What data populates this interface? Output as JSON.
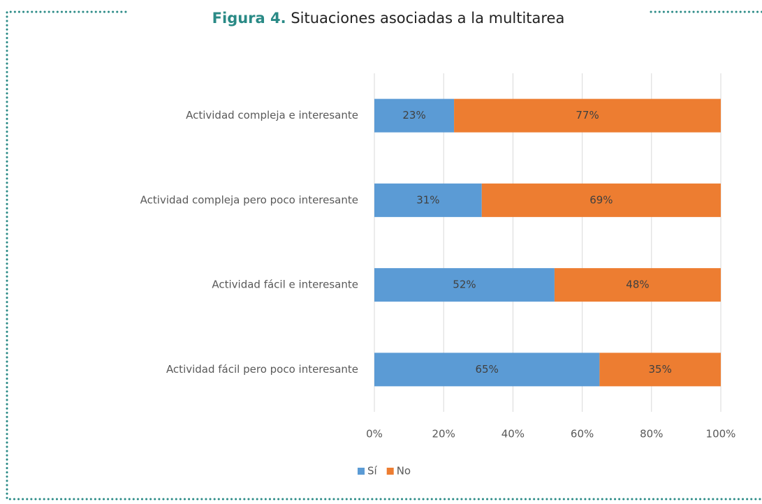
{
  "chart_data": {
    "type": "stacked_barh",
    "figure_label": "Figura 4.",
    "title": "Situaciones asociadas a la multitarea",
    "categories": [
      "Actividad compleja e interesante",
      "Actividad compleja pero poco interesante",
      "Actividad fácil e interesante",
      "Actividad fácil pero poco interesante"
    ],
    "series": [
      {
        "name": "Sí",
        "color": "#5b9bd5",
        "values": [
          23,
          31,
          52,
          65
        ],
        "value_labels": [
          "23%",
          "31%",
          "52%",
          "65%"
        ]
      },
      {
        "name": "No",
        "color": "#ed7d31",
        "values": [
          77,
          69,
          48,
          35
        ],
        "value_labels": [
          "77%",
          "69%",
          "48%",
          "35%"
        ]
      }
    ],
    "xlim": [
      0,
      100
    ],
    "xticks": [
      {
        "value": 0,
        "label": "0%"
      },
      {
        "value": 20,
        "label": "20%"
      },
      {
        "value": 40,
        "label": "40%"
      },
      {
        "value": 60,
        "label": "60%"
      },
      {
        "value": 80,
        "label": "80%"
      },
      {
        "value": 100,
        "label": "100%"
      }
    ],
    "grid": true,
    "legend": "bottom"
  }
}
